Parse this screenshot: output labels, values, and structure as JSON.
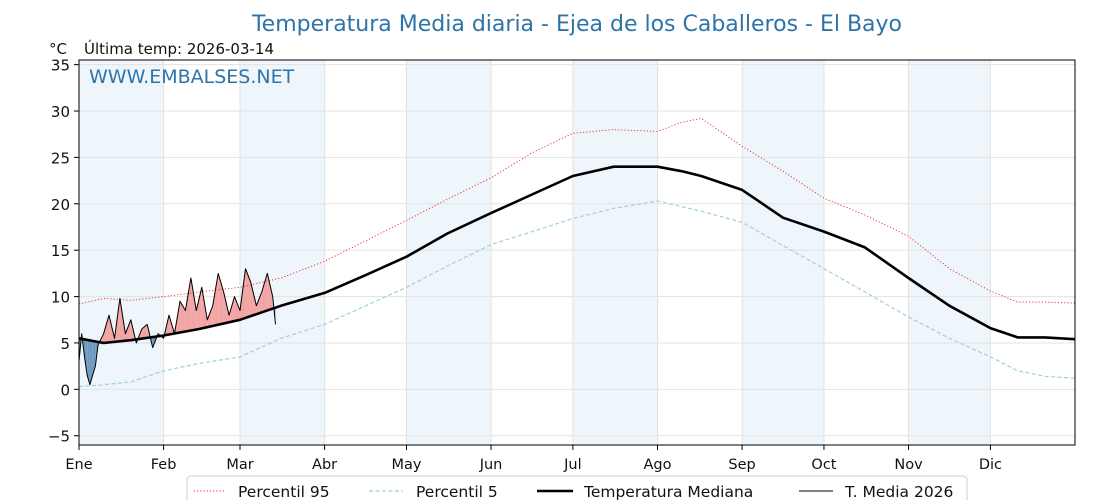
{
  "chart_data": {
    "type": "line",
    "title": "Temperatura Media diaria - Ejea de los Caballeros - El Bayo",
    "ylabel": "°C",
    "last_reading_label": "Última temp: 2026-03-14",
    "watermark": "WWW.EMBALSES.NET",
    "xlabel": "",
    "ylim": [
      -6,
      35.5
    ],
    "yticks": [
      -5,
      0,
      5,
      10,
      15,
      20,
      25,
      30,
      35
    ],
    "ytick_labels": [
      "−5",
      "0",
      "5",
      "10",
      "15",
      "20",
      "25",
      "30",
      "35"
    ],
    "x_unit": "day of year",
    "xlim": [
      1,
      366
    ],
    "month_labels": [
      "Ene",
      "Feb",
      "Mar",
      "Abr",
      "May",
      "Jun",
      "Jul",
      "Ago",
      "Sep",
      "Oct",
      "Nov",
      "Dic"
    ],
    "month_starts": [
      1,
      32,
      60,
      91,
      121,
      152,
      182,
      213,
      244,
      274,
      305,
      335
    ],
    "grid": true,
    "legend_position": "bottom",
    "colors": {
      "p95": "#e8282b",
      "p5": "#9fd0e0",
      "median": "#000000",
      "year": "#000000",
      "above_fill": "#f2a5a5",
      "below_fill": "#6f98bf",
      "band": "#eef5fb",
      "title": "#2f74a9"
    },
    "series": [
      {
        "name": "Percentil 95",
        "style": "dotted",
        "x": [
          1,
          10,
          20,
          32,
          45,
          60,
          75,
          91,
          106,
          121,
          136,
          152,
          167,
          182,
          197,
          213,
          222,
          229,
          244,
          259,
          274,
          289,
          305,
          320,
          335,
          345,
          355,
          366
        ],
        "values": [
          9.2,
          9.8,
          9.6,
          10.0,
          10.5,
          11.0,
          12.0,
          13.8,
          16.0,
          18.2,
          20.5,
          22.8,
          25.5,
          27.6,
          28.0,
          27.8,
          28.8,
          29.2,
          26.2,
          23.5,
          20.6,
          18.8,
          16.5,
          13.0,
          10.6,
          9.4,
          9.4,
          9.3
        ]
      },
      {
        "name": "Percentil 5",
        "style": "dashed",
        "x": [
          1,
          10,
          20,
          32,
          45,
          60,
          75,
          91,
          106,
          121,
          136,
          152,
          167,
          182,
          197,
          213,
          229,
          244,
          259,
          274,
          289,
          305,
          320,
          335,
          345,
          355,
          366
        ],
        "values": [
          0.3,
          0.5,
          0.8,
          2.0,
          2.8,
          3.5,
          5.5,
          7.0,
          9.0,
          11.0,
          13.3,
          15.6,
          17.0,
          18.4,
          19.5,
          20.3,
          19.2,
          18.0,
          15.5,
          13.0,
          10.5,
          7.8,
          5.5,
          3.5,
          2.0,
          1.4,
          1.2
        ]
      },
      {
        "name": "Temperatura Mediana",
        "style": "solid-thick",
        "x": [
          1,
          10,
          20,
          32,
          45,
          60,
          75,
          91,
          106,
          121,
          136,
          152,
          167,
          182,
          197,
          213,
          222,
          229,
          244,
          259,
          274,
          289,
          305,
          320,
          335,
          345,
          355,
          366
        ],
        "values": [
          5.5,
          5.0,
          5.3,
          5.8,
          6.5,
          7.5,
          9.0,
          10.4,
          12.3,
          14.3,
          16.8,
          19.0,
          21.0,
          23.0,
          24.0,
          24.0,
          23.5,
          23.0,
          21.5,
          18.5,
          17.0,
          15.3,
          12.0,
          9.0,
          6.6,
          5.6,
          5.6,
          5.4
        ]
      },
      {
        "name": "T. Media 2026",
        "style": "solid-thin",
        "x": [
          1,
          2,
          3,
          4,
          5,
          6,
          7,
          8,
          10,
          12,
          14,
          16,
          18,
          20,
          22,
          24,
          26,
          28,
          30,
          32,
          34,
          36,
          38,
          40,
          42,
          44,
          46,
          48,
          50,
          52,
          54,
          56,
          58,
          60,
          62,
          64,
          66,
          68,
          70,
          72,
          73
        ],
        "values": [
          3.0,
          6.0,
          3.5,
          1.5,
          0.5,
          1.5,
          2.5,
          4.8,
          6.0,
          8.0,
          5.5,
          9.8,
          6.0,
          7.5,
          5.0,
          6.5,
          7.0,
          4.5,
          6.0,
          5.5,
          8.0,
          6.0,
          9.5,
          8.5,
          12.0,
          8.5,
          11.0,
          7.5,
          9.0,
          12.5,
          10.5,
          8.0,
          10.0,
          8.5,
          13.0,
          11.5,
          9.0,
          10.5,
          12.5,
          10.0,
          7.0
        ]
      }
    ]
  }
}
